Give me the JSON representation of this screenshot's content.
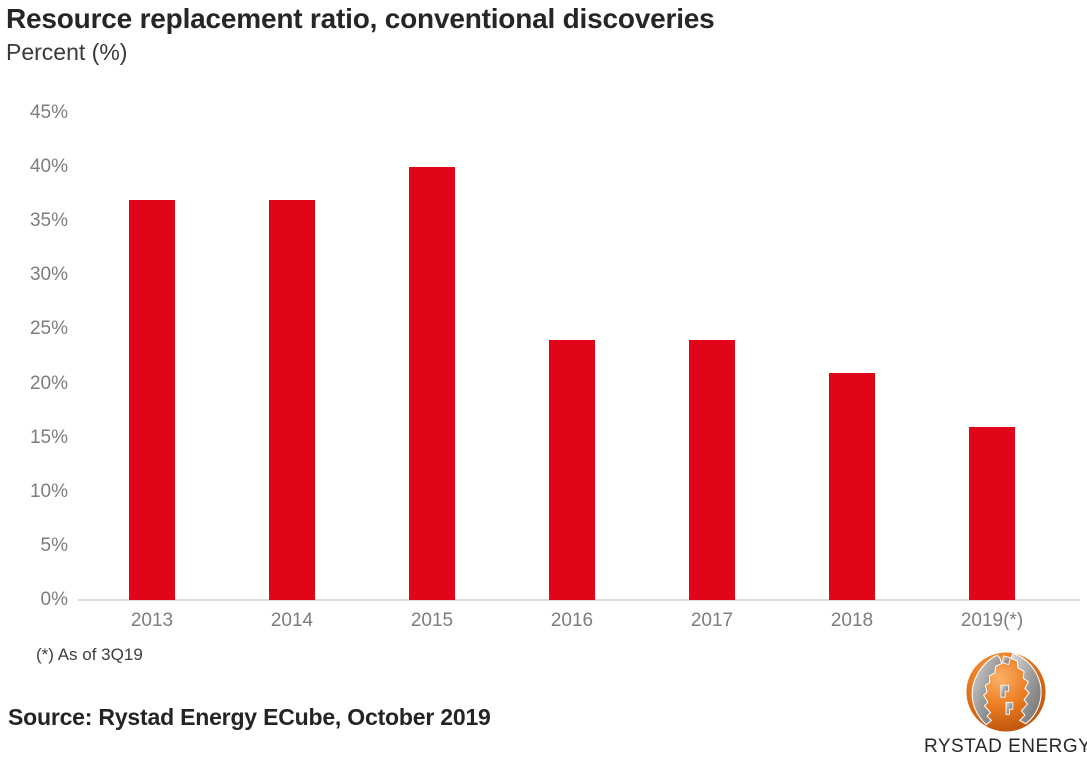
{
  "header": {
    "title": "Resource replacement ratio, conventional discoveries",
    "subtitle": "Percent (%)"
  },
  "chart_data": {
    "type": "bar",
    "title": "Resource replacement ratio, conventional discoveries",
    "categories": [
      "2013",
      "2014",
      "2015",
      "2016",
      "2017",
      "2018",
      "2019(*)"
    ],
    "values": [
      37,
      37,
      40,
      24,
      24,
      21,
      16
    ],
    "xlabel": "",
    "ylabel": "Percent (%)",
    "ylim": [
      0,
      45
    ],
    "ytick_step": 5,
    "ytick_format": "{v}%",
    "grid": false,
    "legend": "none"
  },
  "footnote": "(*) As of 3Q19",
  "source": "Source: Rystad Energy ECube, October 2019",
  "logo": {
    "name": "Rystad Energy",
    "label": "RYSTAD ENERGY",
    "globe_orange": "#ed7d23",
    "globe_gray": "#9c9c9c"
  },
  "colors": {
    "bar": "#e2051a",
    "axis_label": "#7d7d7d",
    "axis_line": "#dcdcdc",
    "title_text": "#262626",
    "footnote_text": "#3d3d3d"
  }
}
